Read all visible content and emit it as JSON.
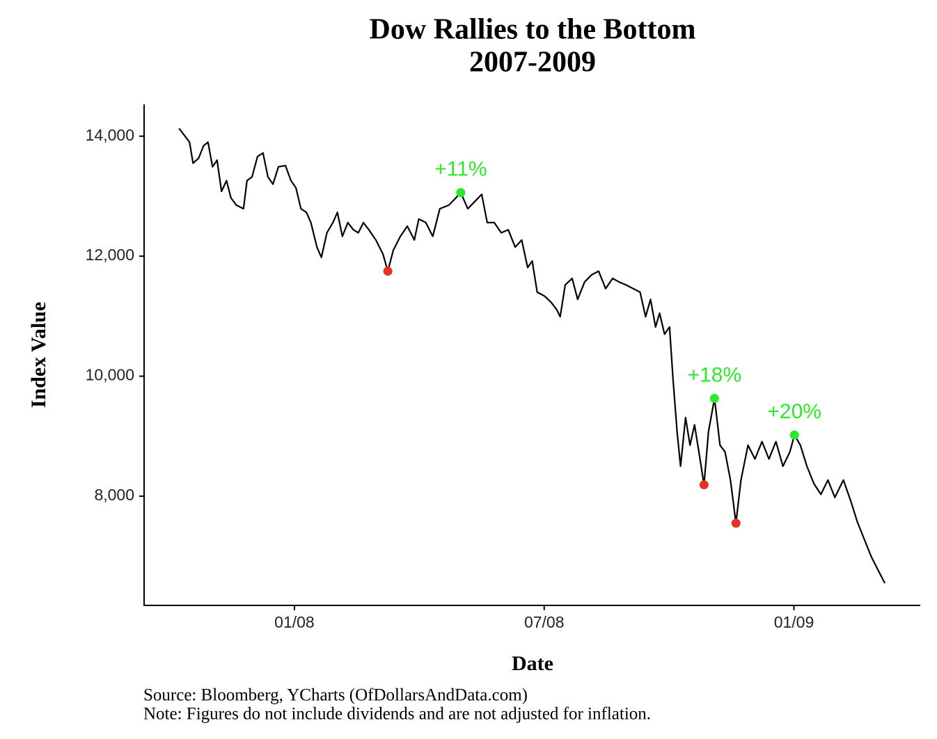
{
  "chart_data": {
    "type": "line",
    "title": "Dow Rallies to the Bottom",
    "subtitle": "2007-2009",
    "x_label": "Date",
    "y_label": "Index Value",
    "source": "Source: Bloomberg, YCharts (OfDollarsAndData.com)",
    "note": "Note: Figures do not include dividends and are not adjusted for inflation.",
    "x": [
      2007.769,
      2007.78,
      2007.79,
      2007.797,
      2007.808,
      2007.818,
      2007.827,
      2007.836,
      2007.845,
      2007.854,
      2007.864,
      2007.873,
      2007.884,
      2007.898,
      2007.905,
      2007.915,
      2007.926,
      2007.937,
      2007.947,
      2007.957,
      2007.968,
      2007.982,
      2007.993,
      2008.003,
      2008.013,
      2008.024,
      2008.033,
      2008.045,
      2008.054,
      2008.065,
      2008.077,
      2008.086,
      2008.096,
      2008.107,
      2008.118,
      2008.128,
      2008.138,
      2008.149,
      2008.163,
      2008.177,
      2008.187,
      2008.198,
      2008.212,
      2008.226,
      2008.24,
      2008.249,
      2008.263,
      2008.277,
      2008.291,
      2008.309,
      2008.323,
      2008.333,
      2008.347,
      2008.361,
      2008.375,
      2008.386,
      2008.4,
      2008.414,
      2008.428,
      2008.442,
      2008.455,
      2008.467,
      2008.476,
      2008.486,
      2008.5,
      2008.514,
      2008.525,
      2008.532,
      2008.542,
      2008.556,
      2008.567,
      2008.581,
      2008.595,
      2008.609,
      2008.623,
      2008.637,
      2008.65,
      2008.664,
      2008.678,
      2008.692,
      2008.703,
      2008.713,
      2008.723,
      2008.731,
      2008.741,
      2008.751,
      2008.758,
      2008.766,
      2008.773,
      2008.783,
      2008.792,
      2008.801,
      2008.811,
      2008.82,
      2008.829,
      2008.841,
      2008.852,
      2008.862,
      2008.873,
      2008.884,
      2008.894,
      2008.908,
      2008.922,
      2008.936,
      2008.95,
      2008.964,
      2008.978,
      2008.992,
      2009.001,
      2009.013,
      2009.026,
      2009.04,
      2009.054,
      2009.068,
      2009.082,
      2009.099,
      2009.113,
      2009.127,
      2009.141,
      2009.155,
      2009.169,
      2009.182
    ],
    "series": [
      {
        "name": "Dow",
        "color": "#000000",
        "values": [
          14130,
          14010,
          13900,
          13550,
          13630,
          13840,
          13900,
          13490,
          13600,
          13080,
          13260,
          12970,
          12850,
          12790,
          13260,
          13320,
          13660,
          13720,
          13320,
          13200,
          13490,
          13510,
          13260,
          13140,
          12790,
          12730,
          12560,
          12150,
          11980,
          12390,
          12560,
          12730,
          12330,
          12560,
          12440,
          12390,
          12560,
          12440,
          12270,
          12040,
          11750,
          12100,
          12330,
          12500,
          12270,
          12620,
          12560,
          12330,
          12790,
          12850,
          12970,
          13060,
          12790,
          12910,
          13030,
          12560,
          12560,
          12390,
          12440,
          12150,
          12270,
          11810,
          11920,
          11400,
          11340,
          11230,
          11110,
          10990,
          11520,
          11630,
          11280,
          11570,
          11690,
          11750,
          11460,
          11630,
          11570,
          11520,
          11460,
          11400,
          10990,
          11280,
          10820,
          11050,
          10700,
          10820,
          9950,
          9080,
          8500,
          9310,
          8850,
          9190,
          8670,
          8190,
          9080,
          9630,
          8850,
          8740,
          8270,
          7550,
          8270,
          8850,
          8620,
          8910,
          8620,
          8910,
          8500,
          8740,
          9020,
          8850,
          8500,
          8210,
          8030,
          8270,
          7980,
          8270,
          7940,
          7570,
          7280,
          6990,
          6760,
          6550
        ]
      }
    ],
    "peaks": {
      "color": "#2ee82e",
      "x": [
        2008.333,
        2008.841,
        2009.001
      ],
      "values": [
        13060,
        9630,
        9020
      ],
      "labels": [
        "+11%",
        "+18%",
        "+20%"
      ]
    },
    "troughs": {
      "color": "#e8321e",
      "x": [
        2008.187,
        2008.82,
        2008.884
      ],
      "values": [
        11750,
        8190,
        7550
      ]
    },
    "xlim": [
      2007.699,
      2009.253
    ],
    "xticks": [
      {
        "value": 2008.0,
        "label": "01/08"
      },
      {
        "value": 2008.5,
        "label": "07/08"
      },
      {
        "value": 2009.0,
        "label": "01/09"
      }
    ],
    "ylim": [
      6180,
      14530
    ],
    "yticks": [
      {
        "value": 8000,
        "label": "8,000"
      },
      {
        "value": 10000,
        "label": "10,000"
      },
      {
        "value": 12000,
        "label": "12,000"
      },
      {
        "value": 14000,
        "label": "14,000"
      }
    ],
    "grid": false
  }
}
